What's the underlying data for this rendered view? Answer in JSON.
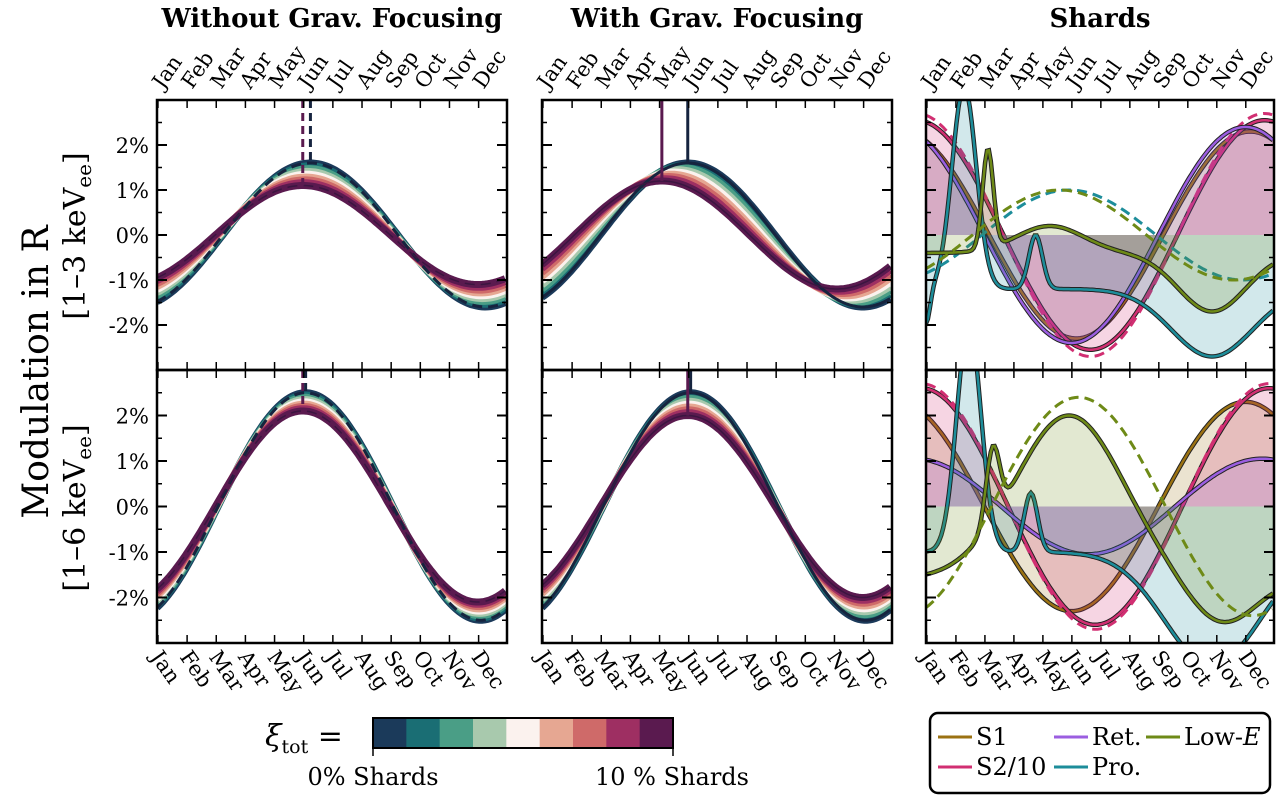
{
  "figure": {
    "ylabel": "Modulation in R",
    "row_labels": [
      "[1–3 keV",
      "[1–6 keV"
    ],
    "row_label_sub": "ee",
    "row_label_close": "]"
  },
  "columns": [
    {
      "title": "Without Grav. Focusing"
    },
    {
      "title": "With Grav. Focusing"
    },
    {
      "title": "Shards"
    }
  ],
  "months": [
    "Jan",
    "Feb",
    "Mar",
    "Apr",
    "May",
    "Jun",
    "Jul",
    "Aug",
    "Sep",
    "Oct",
    "Nov",
    "Dec"
  ],
  "yticks": {
    "row0": [
      "2%",
      "1%",
      "0%",
      "-1%",
      "-2%"
    ],
    "row1": [
      "2%",
      "1%",
      "0%",
      "-1%",
      "-2%"
    ]
  },
  "colorbar": {
    "label": "ξ",
    "label_sub": "tot",
    "label_eq": " =",
    "left": "0% Shards",
    "right": "10 % Shards",
    "colors": [
      "#1b3a5a",
      "#1a6e74",
      "#4a9e86",
      "#a8c9ad",
      "#fbf2ee",
      "#e6a792",
      "#cf6a69",
      "#9e2f62",
      "#5a1a4f"
    ]
  },
  "legend": {
    "items": [
      {
        "label": "S1",
        "color": "#9b7212"
      },
      {
        "label": "S2/10",
        "color": "#d12f72"
      },
      {
        "label": "Ret.",
        "color": "#9b5ee0"
      },
      {
        "label": "Pro.",
        "color": "#1d8d9a"
      },
      {
        "label": "Low-",
        "label_em": "E",
        "color": "#6e8a17"
      }
    ]
  },
  "chart_data": [
    {
      "type": "line",
      "title": "Without Grav. Focusing",
      "row": "[1–3 keVee]",
      "x": "day of year (Jan–Dec)",
      "ylim": [
        -3,
        3
      ],
      "series": [
        {
          "amp_pct": 1.1,
          "peak_day": 152,
          "xi_pct": 0
        },
        {
          "amp_pct": 1.6,
          "peak_day": 160,
          "xi_pct": 10
        }
      ],
      "peak_markers_month": [
        "Jun",
        "Jun"
      ]
    },
    {
      "type": "line",
      "title": "With Grav. Focusing",
      "row": "[1–3 keVee]",
      "x": "day of year (Jan–Dec)",
      "ylim": [
        -3,
        3
      ],
      "series": [
        {
          "amp_pct": 1.2,
          "peak_day": 125,
          "xi_pct": 0
        },
        {
          "amp_pct": 1.6,
          "peak_day": 152,
          "xi_pct": 10
        }
      ],
      "peak_markers_month": [
        "May",
        "Jun"
      ]
    },
    {
      "type": "line",
      "title": "Shards",
      "row": "[1–3 keVee]",
      "ylim": [
        -3,
        3
      ],
      "series": [
        "S1",
        "S2/10",
        "Ret.",
        "Pro.",
        "Low-E"
      ]
    },
    {
      "type": "line",
      "title": "Without Grav. Focusing",
      "row": "[1–6 keVee]",
      "x": "day of year (Jan–Dec)",
      "ylim": [
        -3,
        3
      ],
      "series": [
        {
          "amp_pct": 2.1,
          "peak_day": 152,
          "xi_pct": 0
        },
        {
          "amp_pct": 2.5,
          "peak_day": 155,
          "xi_pct": 10
        }
      ],
      "peak_markers_month": [
        "Jun",
        "Jun"
      ]
    },
    {
      "type": "line",
      "title": "With Grav. Focusing",
      "row": "[1–6 keVee]",
      "x": "day of year (Jan–Dec)",
      "ylim": [
        -3,
        3
      ],
      "series": [
        {
          "amp_pct": 2.0,
          "peak_day": 152,
          "xi_pct": 0
        },
        {
          "amp_pct": 2.5,
          "peak_day": 155,
          "xi_pct": 10
        }
      ],
      "peak_markers_month": [
        "Jun",
        "Jun"
      ]
    },
    {
      "type": "line",
      "title": "Shards",
      "row": "[1–6 keVee]",
      "ylim": [
        -3,
        3
      ],
      "series": [
        "S1",
        "S2/10",
        "Ret.",
        "Pro.",
        "Low-E"
      ]
    }
  ]
}
